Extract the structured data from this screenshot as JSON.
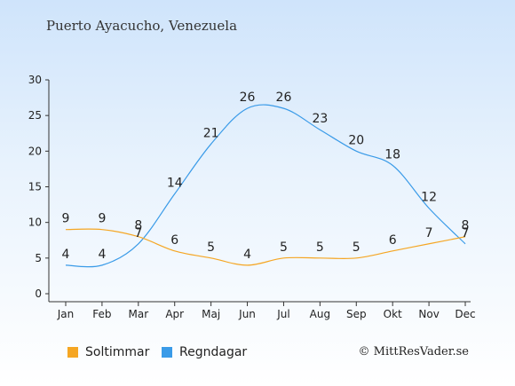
{
  "header": {
    "title": "Puerto Ayacucho, Venezuela"
  },
  "footer": {
    "copyright": "© MittResVader.se"
  },
  "colors": {
    "sun": "#f5a623",
    "rain": "#3a9be8",
    "axis": "#333333",
    "background_top": "#cfe4fb"
  },
  "chart_data": {
    "type": "line",
    "title": "Puerto Ayacucho, Venezuela",
    "categories": [
      "Jan",
      "Feb",
      "Mar",
      "Apr",
      "Maj",
      "Jun",
      "Jul",
      "Aug",
      "Sep",
      "Okt",
      "Nov",
      "Dec"
    ],
    "ylim": [
      0,
      30
    ],
    "yticks": [
      0,
      5,
      10,
      15,
      20,
      25,
      30
    ],
    "grid": false,
    "legend_position": "bottom-left",
    "series": [
      {
        "name": "Soltimmar",
        "color": "#f5a623",
        "values": [
          9,
          9,
          8,
          6,
          5,
          4,
          5,
          5,
          5,
          6,
          7,
          8
        ]
      },
      {
        "name": "Regndagar",
        "color": "#3a9be8",
        "values": [
          4,
          4,
          7,
          14,
          21,
          26,
          26,
          23,
          20,
          18,
          12,
          7
        ]
      }
    ]
  }
}
